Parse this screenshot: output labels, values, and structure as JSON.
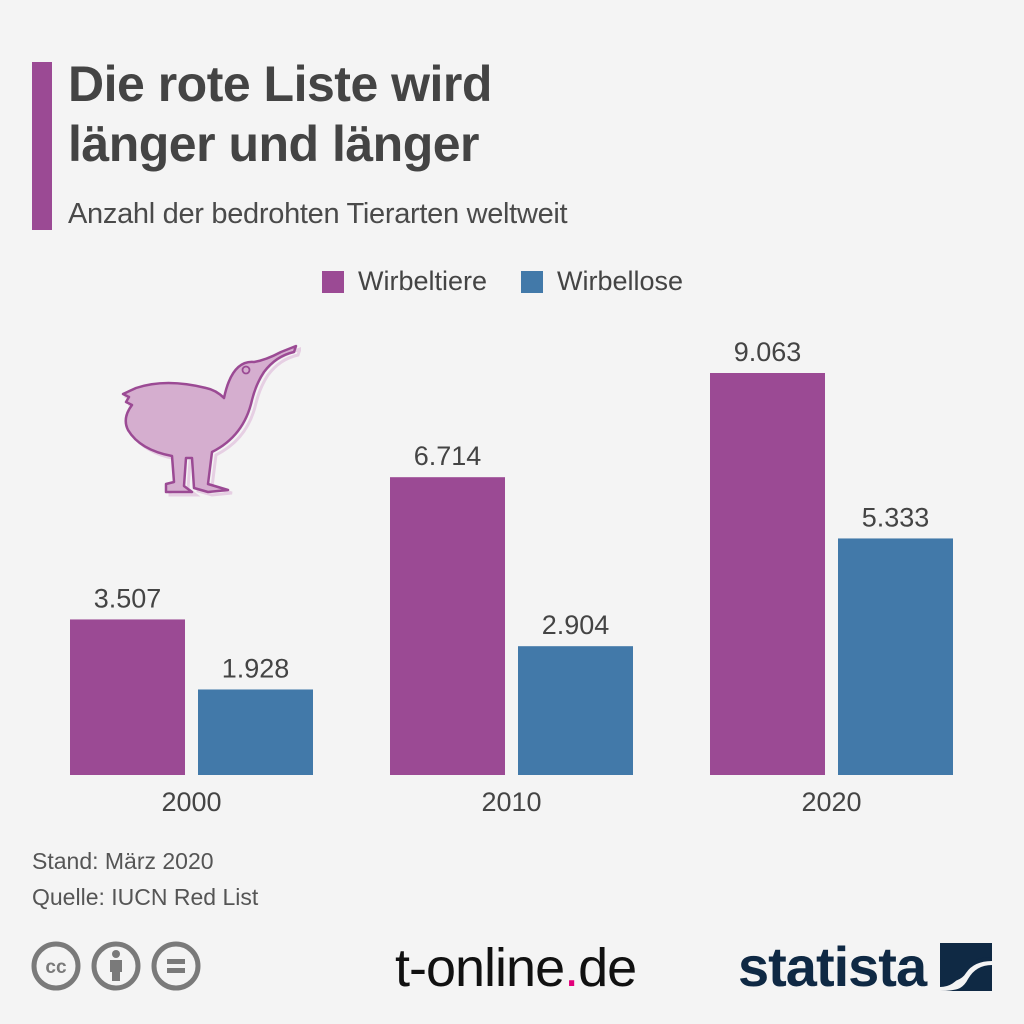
{
  "header": {
    "title_line1": "Die rote Liste wird",
    "title_line2": "länger und länger",
    "subtitle": "Anzahl der bedrohten Tierarten weltweit"
  },
  "colors": {
    "accent": "#9b4a94",
    "wirbeltiere": "#9b4a94",
    "wirbellose": "#4279a9",
    "kiwi_fill": "#d5aecf",
    "kiwi_stroke": "#9b4a94",
    "text": "#444444",
    "tonline_dot": "#e2007a",
    "statista": "#0f2944"
  },
  "legend": [
    {
      "label": "Wirbeltiere",
      "color": "#9b4a94"
    },
    {
      "label": "Wirbellose",
      "color": "#4279a9"
    }
  ],
  "chart_data": {
    "type": "bar",
    "title": "Die rote Liste wird länger und länger",
    "subtitle": "Anzahl der bedrohten Tierarten weltweit",
    "categories": [
      "2000",
      "2010",
      "2020"
    ],
    "series": [
      {
        "name": "Wirbeltiere",
        "values": [
          3507,
          6714,
          9063
        ],
        "labels": [
          "3.507",
          "6.714",
          "9.063"
        ]
      },
      {
        "name": "Wirbellose",
        "values": [
          1928,
          2904,
          5333
        ],
        "labels": [
          "1.928",
          "2.904",
          "5.333"
        ]
      }
    ],
    "xlabel": "",
    "ylabel": "",
    "ylim": [
      0,
      9063
    ],
    "grid": false,
    "legend_position": "top-center",
    "data_labels": true
  },
  "illustration": {
    "name": "kiwi-bird"
  },
  "footer": {
    "stand": "Stand: März 2020",
    "source": "Quelle: IUCN Red List",
    "license_icons": [
      "cc-icon",
      "attribution-icon",
      "no-derivatives-icon"
    ],
    "tonline_text": "t-online",
    "tonline_dot": ".",
    "tonline_tld": "de",
    "statista_text": "statista"
  }
}
